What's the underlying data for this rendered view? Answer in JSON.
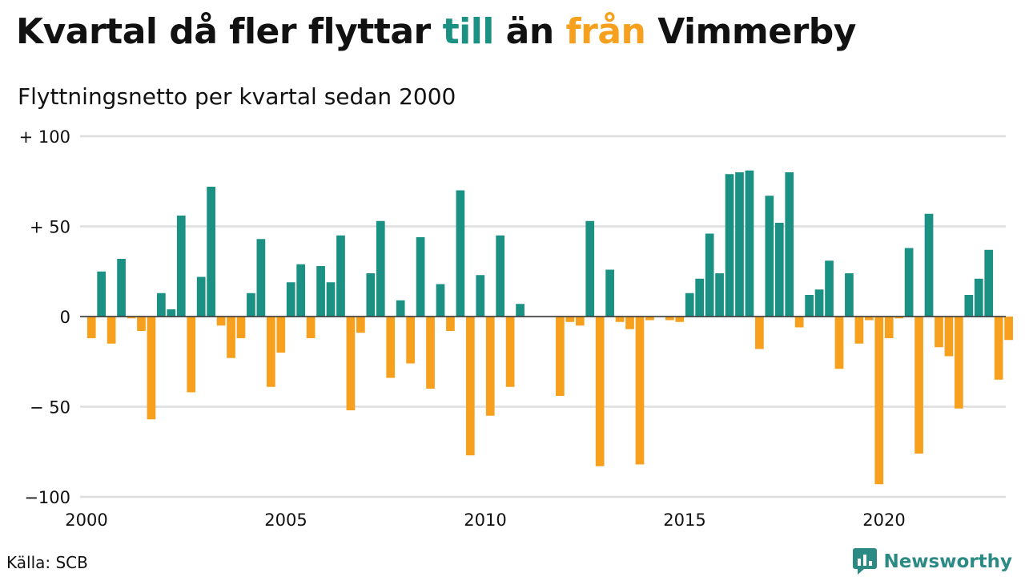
{
  "title": {
    "part1": "Kvartal då fler flyttar ",
    "part2": "till",
    "part3": " än ",
    "part4": "från",
    "part5": " Vimmerby"
  },
  "colors": {
    "positive": "#1b9184",
    "negative": "#f7a01e",
    "gridline": "#dedede",
    "zero_line": "#333333",
    "brand": "#2b8a84"
  },
  "source": "Källa: SCB",
  "brand": {
    "name": "Newsworthy",
    "icon": "newsworthy-logo-icon"
  },
  "chart_data": {
    "type": "bar",
    "title": "Kvartal då fler flyttar till än från Vimmerby",
    "subtitle": "Flyttningsnetto per kvartal sedan 2000",
    "xlabel": "",
    "ylabel": "",
    "ylim": [
      -100,
      100
    ],
    "y_ticks": [
      100,
      50,
      0,
      -50,
      -100
    ],
    "y_tick_labels": [
      "+ 100",
      "+  50",
      "0",
      "− 50",
      "−100"
    ],
    "x_range": [
      2000,
      2023
    ],
    "x_ticks": [
      2000,
      2005,
      2010,
      2015,
      2020
    ],
    "x_tick_labels": [
      "2000",
      "2005",
      "2010",
      "2015",
      "2020"
    ],
    "grid": true,
    "legend": "none (colors explained in title)",
    "quarters": [
      "2000Q1",
      "2000Q2",
      "2000Q3",
      "2000Q4",
      "2001Q1",
      "2001Q2",
      "2001Q3",
      "2001Q4",
      "2002Q1",
      "2002Q2",
      "2002Q3",
      "2002Q4",
      "2003Q1",
      "2003Q2",
      "2003Q3",
      "2003Q4",
      "2004Q1",
      "2004Q2",
      "2004Q3",
      "2004Q4",
      "2005Q1",
      "2005Q2",
      "2005Q3",
      "2005Q4",
      "2006Q1",
      "2006Q2",
      "2006Q3",
      "2006Q4",
      "2007Q1",
      "2007Q2",
      "2007Q3",
      "2007Q4",
      "2008Q1",
      "2008Q2",
      "2008Q3",
      "2008Q4",
      "2009Q1",
      "2009Q2",
      "2009Q3",
      "2009Q4",
      "2010Q1",
      "2010Q2",
      "2010Q3",
      "2010Q4",
      "2011Q1",
      "2011Q2",
      "2011Q3",
      "2011Q4",
      "2012Q1",
      "2012Q2",
      "2012Q3",
      "2012Q4",
      "2013Q1",
      "2013Q2",
      "2013Q3",
      "2013Q4",
      "2014Q1",
      "2014Q2",
      "2014Q3",
      "2014Q4",
      "2015Q1",
      "2015Q2",
      "2015Q3",
      "2015Q4",
      "2016Q1",
      "2016Q2",
      "2016Q3",
      "2016Q4",
      "2017Q1",
      "2017Q2",
      "2017Q3",
      "2017Q4",
      "2018Q1",
      "2018Q2",
      "2018Q3",
      "2018Q4",
      "2019Q1",
      "2019Q2",
      "2019Q3",
      "2019Q4",
      "2020Q1",
      "2020Q2",
      "2020Q3",
      "2020Q4",
      "2021Q1",
      "2021Q2",
      "2021Q3",
      "2021Q4",
      "2022Q1",
      "2022Q2",
      "2022Q3",
      "2022Q4",
      "2023Q1",
      "2023Q2"
    ],
    "values": [
      -12,
      25,
      -15,
      32,
      -1,
      -8,
      -57,
      13,
      4,
      56,
      -42,
      22,
      72,
      -5,
      -23,
      -12,
      13,
      43,
      -39,
      -20,
      19,
      29,
      -12,
      28,
      19,
      45,
      -52,
      -9,
      24,
      53,
      -34,
      9,
      -26,
      44,
      -40,
      18,
      -8,
      70,
      -77,
      23,
      -55,
      45,
      -39,
      7,
      0,
      0,
      0,
      -44,
      -3,
      -5,
      53,
      -83,
      26,
      -3,
      -7,
      -82,
      -2,
      0,
      -2,
      -3,
      13,
      21,
      46,
      24,
      79,
      80,
      81,
      -18,
      67,
      52,
      80,
      -6,
      12,
      15,
      31,
      -29,
      24,
      -15,
      -2,
      -93,
      -12,
      -1,
      38,
      -76,
      57,
      -17,
      -22,
      -51,
      12,
      21,
      37,
      -35,
      -13,
      0
    ]
  }
}
